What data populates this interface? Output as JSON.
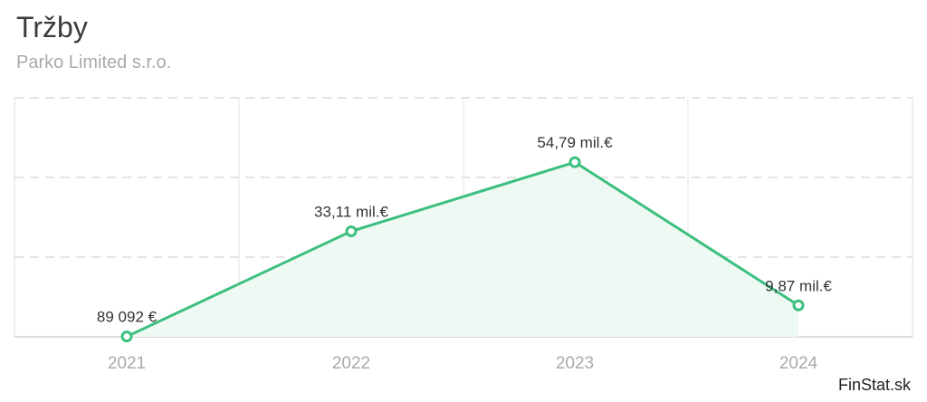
{
  "header": {
    "title": "Tržby",
    "subtitle": "Parko Limited s.r.o."
  },
  "watermark": "FinStat.sk",
  "colors": {
    "line": "#3cbf7f",
    "area": "#eef9f3",
    "grid": "#dcdcdc",
    "tick": "#aaaaaa",
    "label": "#333333"
  },
  "chart_data": {
    "type": "area",
    "categories": [
      "2021",
      "2022",
      "2023",
      "2024"
    ],
    "values": [
      0.089092,
      33.11,
      54.79,
      9.87
    ],
    "data_labels": [
      "89 092 €",
      "33,11 mil.€",
      "54,79 mil.€",
      "9,87 mil.€"
    ],
    "title": "Tržby",
    "subtitle": "Parko Limited s.r.o.",
    "ylim": [
      0,
      75
    ],
    "grid": true,
    "legend": "none"
  }
}
